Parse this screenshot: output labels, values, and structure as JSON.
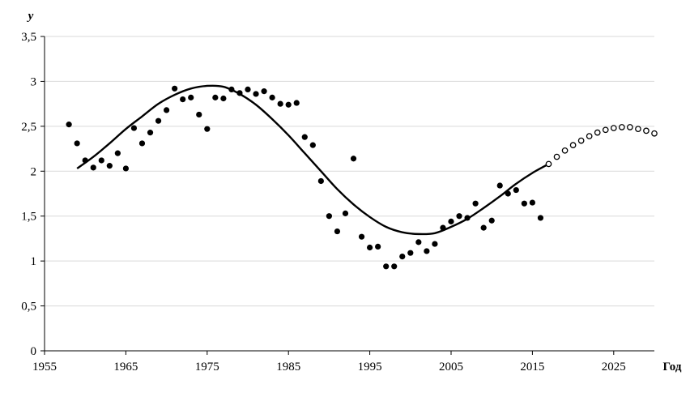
{
  "chart_data": {
    "type": "scatter",
    "title": "",
    "xlabel": "Год",
    "ylabel": "y",
    "xlim": [
      1955,
      2030
    ],
    "ylim": [
      0,
      3.5
    ],
    "xticks": [
      1955,
      1965,
      1975,
      1985,
      1995,
      2005,
      2015,
      2025
    ],
    "xtick_labels": [
      "1955",
      "1965",
      "1975",
      "1985",
      "1995",
      "2005",
      "2015",
      "2025"
    ],
    "yticks": [
      0,
      0.5,
      1,
      1.5,
      2,
      2.5,
      3,
      3.5
    ],
    "ytick_labels": [
      "0",
      "0,5",
      "1",
      "1,5",
      "2",
      "2,5",
      "3",
      "3,5"
    ],
    "grid": {
      "horizontal": true,
      "vertical": false
    },
    "colors": {
      "axes": "#000000",
      "grid": "#d9d9d9",
      "points": "#000000",
      "forecast_fill": "#ffffff",
      "curve": "#000000"
    },
    "series": [
      {
        "kind": "scatter-filled",
        "points": [
          [
            1958,
            2.52
          ],
          [
            1959,
            2.31
          ],
          [
            1960,
            2.12
          ],
          [
            1961,
            2.04
          ],
          [
            1962,
            2.12
          ],
          [
            1963,
            2.06
          ],
          [
            1964,
            2.2
          ],
          [
            1965,
            2.03
          ],
          [
            1966,
            2.48
          ],
          [
            1967,
            2.31
          ],
          [
            1968,
            2.43
          ],
          [
            1969,
            2.56
          ],
          [
            1970,
            2.68
          ],
          [
            1971,
            2.92
          ],
          [
            1972,
            2.8
          ],
          [
            1973,
            2.82
          ],
          [
            1974,
            2.63
          ],
          [
            1975,
            2.47
          ],
          [
            1976,
            2.82
          ],
          [
            1977,
            2.81
          ],
          [
            1978,
            2.91
          ],
          [
            1979,
            2.87
          ],
          [
            1980,
            2.91
          ],
          [
            1981,
            2.86
          ],
          [
            1982,
            2.89
          ],
          [
            1983,
            2.82
          ],
          [
            1984,
            2.75
          ],
          [
            1985,
            2.74
          ],
          [
            1986,
            2.76
          ],
          [
            1987,
            2.38
          ],
          [
            1988,
            2.29
          ],
          [
            1989,
            1.89
          ],
          [
            1990,
            1.5
          ],
          [
            1991,
            1.33
          ],
          [
            1992,
            1.53
          ],
          [
            1993,
            2.14
          ],
          [
            1994,
            1.27
          ],
          [
            1995,
            1.15
          ],
          [
            1996,
            1.16
          ],
          [
            1997,
            0.94
          ],
          [
            1998,
            0.94
          ],
          [
            1999,
            1.05
          ],
          [
            2000,
            1.09
          ],
          [
            2001,
            1.21
          ],
          [
            2002,
            1.11
          ],
          [
            2003,
            1.19
          ],
          [
            2004,
            1.37
          ],
          [
            2005,
            1.44
          ],
          [
            2006,
            1.5
          ],
          [
            2007,
            1.48
          ],
          [
            2008,
            1.64
          ],
          [
            2009,
            1.37
          ],
          [
            2010,
            1.45
          ],
          [
            2011,
            1.84
          ],
          [
            2012,
            1.75
          ],
          [
            2013,
            1.79
          ],
          [
            2014,
            1.64
          ],
          [
            2015,
            1.65
          ],
          [
            2016,
            1.48
          ]
        ]
      },
      {
        "kind": "curve",
        "points": [
          [
            1959,
            2.03
          ],
          [
            1961,
            2.16
          ],
          [
            1963,
            2.31
          ],
          [
            1965,
            2.47
          ],
          [
            1967,
            2.61
          ],
          [
            1969,
            2.75
          ],
          [
            1971,
            2.85
          ],
          [
            1973,
            2.92
          ],
          [
            1975,
            2.95
          ],
          [
            1977,
            2.94
          ],
          [
            1979,
            2.86
          ],
          [
            1981,
            2.74
          ],
          [
            1983,
            2.58
          ],
          [
            1985,
            2.4
          ],
          [
            1987,
            2.2
          ],
          [
            1989,
            2.0
          ],
          [
            1991,
            1.8
          ],
          [
            1993,
            1.63
          ],
          [
            1995,
            1.49
          ],
          [
            1997,
            1.38
          ],
          [
            1999,
            1.32
          ],
          [
            2001,
            1.3
          ],
          [
            2003,
            1.31
          ],
          [
            2005,
            1.38
          ],
          [
            2007,
            1.47
          ],
          [
            2009,
            1.59
          ],
          [
            2011,
            1.72
          ],
          [
            2013,
            1.86
          ],
          [
            2015,
            1.98
          ],
          [
            2017,
            2.08
          ]
        ]
      },
      {
        "kind": "forecast-open-markers",
        "points": [
          [
            2017,
            2.08
          ],
          [
            2018,
            2.16
          ],
          [
            2019,
            2.23
          ],
          [
            2020,
            2.29
          ],
          [
            2021,
            2.34
          ],
          [
            2022,
            2.39
          ],
          [
            2023,
            2.43
          ],
          [
            2024,
            2.46
          ],
          [
            2025,
            2.48
          ],
          [
            2026,
            2.49
          ],
          [
            2027,
            2.49
          ],
          [
            2028,
            2.47
          ],
          [
            2029,
            2.45
          ],
          [
            2030,
            2.42
          ]
        ]
      }
    ]
  }
}
